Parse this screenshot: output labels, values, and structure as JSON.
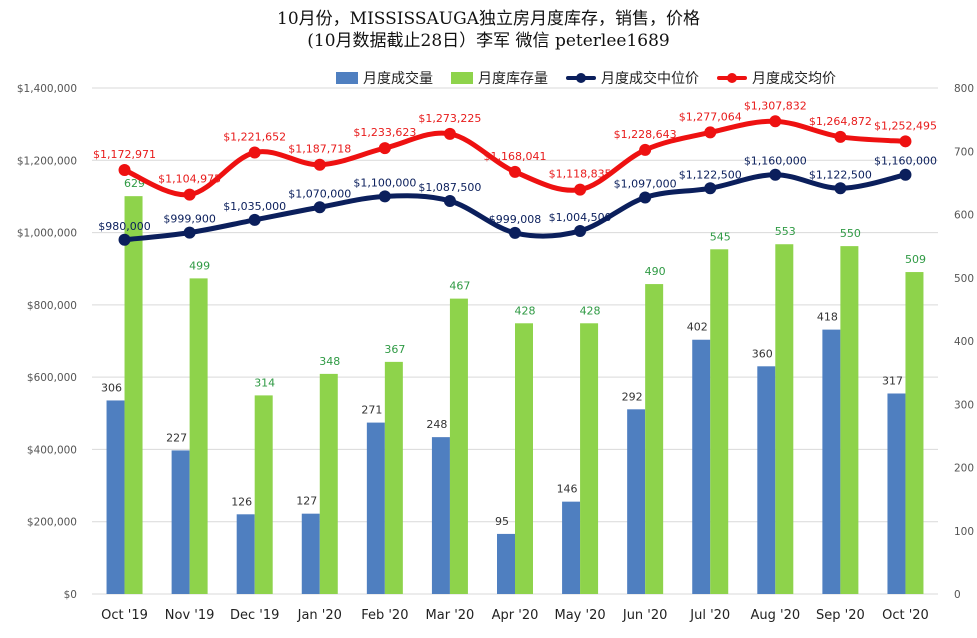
{
  "chart_data": {
    "type": "bar",
    "title": "10月份，MISSISSAUGA独立房月度库存，销售，价格",
    "subtitle": "(10月数据截止28日）李军 微信 peterlee1689",
    "categories": [
      "Oct '19",
      "Nov '19",
      "Dec '19",
      "Jan '20",
      "Feb '20",
      "Mar '20",
      "Apr '20",
      "May '20",
      "Jun '20",
      "Jul '20",
      "Aug '20",
      "Sep '20",
      "Oct '20"
    ],
    "series": [
      {
        "name": "月度成交量",
        "kind": "bar",
        "axis": "right",
        "color": "#4f7fc0",
        "label_color": "#333333",
        "values": [
          306,
          227,
          126,
          127,
          271,
          248,
          95,
          146,
          292,
          402,
          360,
          418,
          317
        ]
      },
      {
        "name": "月度库存量",
        "kind": "bar",
        "axis": "right",
        "color": "#8ed34b",
        "label_color": "#2f9a44",
        "values": [
          629,
          499,
          314,
          348,
          367,
          467,
          428,
          428,
          490,
          545,
          553,
          550,
          509
        ]
      },
      {
        "name": "月度成交中位价",
        "kind": "line",
        "axis": "left",
        "color": "#0b1f5c",
        "label_color": "#0b1f5c",
        "values": [
          980000,
          999900,
          1035000,
          1070000,
          1100000,
          1087500,
          999008,
          1004500,
          1097000,
          1122500,
          1160000,
          1122500,
          1160000
        ],
        "labels": [
          "$980,000",
          "$999,900",
          "$1,035,000",
          "$1,070,000",
          "$1,100,000",
          "$1,087,500",
          "$999,008",
          "$1,004,500",
          "$1,097,000",
          "$1,122,500",
          "$1,160,000",
          "$1,122,500",
          "$1,160,000"
        ]
      },
      {
        "name": "月度成交均价",
        "kind": "line",
        "axis": "left",
        "color": "#ee1111",
        "label_color": "#e81b1b",
        "values": [
          1172971,
          1104975,
          1221652,
          1187718,
          1233623,
          1273225,
          1168041,
          1118835,
          1228643,
          1277064,
          1307832,
          1264872,
          1252495
        ],
        "labels": [
          "$1,172,971",
          "$1,104,975",
          "$1,221,652",
          "$1,187,718",
          "$1,233,623",
          "$1,273,225",
          "$1,168,041",
          "$1,118,835",
          "$1,228,643",
          "$1,277,064",
          "$1,307,832",
          "$1,264,872",
          "$1,252,495"
        ]
      }
    ],
    "left_axis": {
      "min": 0,
      "max": 1400000,
      "step": 200000,
      "tick_labels": [
        "$0",
        "$200,000",
        "$400,000",
        "$600,000",
        "$800,000",
        "$1,000,000",
        "$1,200,000",
        "$1,400,000"
      ]
    },
    "right_axis": {
      "min": 0,
      "max": 800,
      "step": 100,
      "tick_labels": [
        "0",
        "100",
        "200",
        "300",
        "400",
        "500",
        "600",
        "700",
        "800"
      ]
    },
    "grid": true,
    "legend_position": "top"
  }
}
